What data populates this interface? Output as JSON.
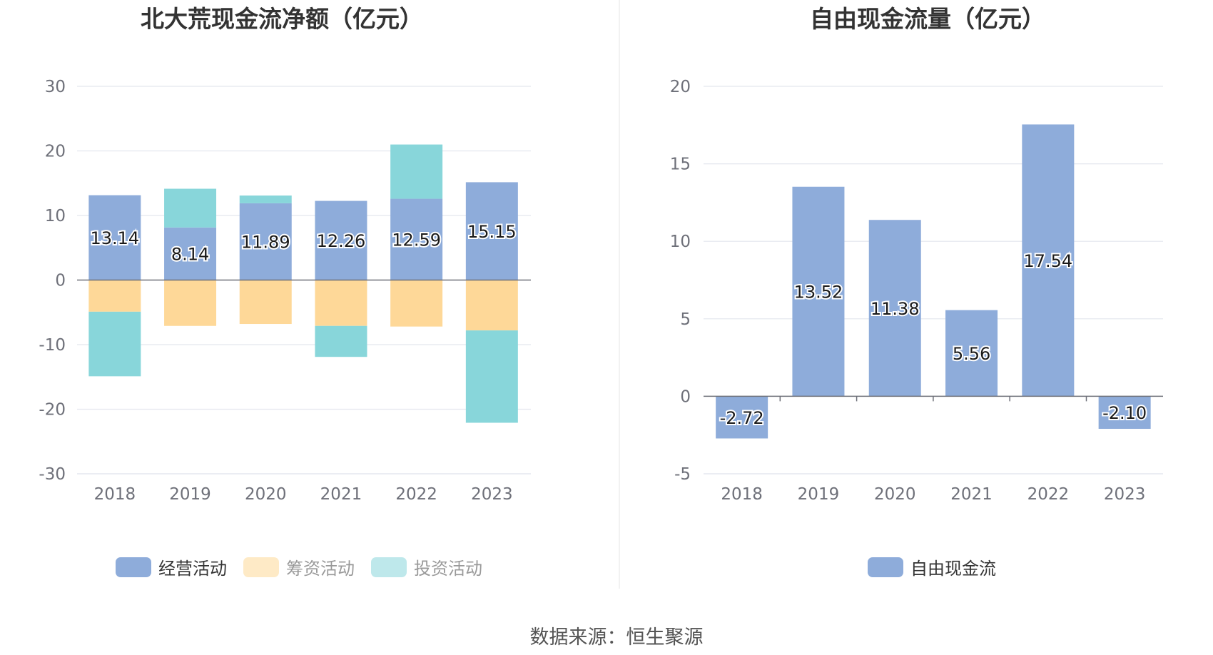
{
  "source_label": "数据来源：恒生聚源",
  "chart_data": [
    {
      "type": "bar",
      "stacked": true,
      "title": "北大荒现金流净额（亿元）",
      "categories": [
        "2018",
        "2019",
        "2020",
        "2021",
        "2022",
        "2023"
      ],
      "ylim": [
        -30,
        30
      ],
      "yticks": [
        30,
        20,
        10,
        0,
        -10,
        -20,
        -30
      ],
      "grid": true,
      "legend_position": "bottom",
      "series": [
        {
          "name": "经营活动",
          "color": "#8eacda",
          "labeled": true,
          "values": [
            13.14,
            8.14,
            11.89,
            12.26,
            12.59,
            15.15
          ],
          "labels": [
            "13.14",
            "8.14",
            "11.89",
            "12.26",
            "12.59",
            "15.15"
          ]
        },
        {
          "name": "筹资活动",
          "color": "#fed898",
          "values": [
            -4.9,
            -7.1,
            -6.8,
            -7.1,
            -7.2,
            -7.8
          ]
        },
        {
          "name": "投资活动",
          "color": "#88d6da",
          "values": [
            -10.0,
            6.0,
            1.2,
            -4.8,
            8.4,
            -14.3
          ]
        }
      ]
    },
    {
      "type": "bar",
      "title": "自由现金流量（亿元）",
      "categories": [
        "2018",
        "2019",
        "2020",
        "2021",
        "2022",
        "2023"
      ],
      "ylim": [
        -5,
        20
      ],
      "yticks": [
        20,
        15,
        10,
        5,
        0,
        -5
      ],
      "grid": true,
      "legend_position": "bottom",
      "series": [
        {
          "name": "自由现金流",
          "color": "#8eacda",
          "labeled": true,
          "values": [
            -2.72,
            13.52,
            11.38,
            5.56,
            17.54,
            -2.1
          ],
          "labels": [
            "-2.72",
            "13.52",
            "11.38",
            "5.56",
            "17.54",
            "-2.10"
          ]
        }
      ]
    }
  ]
}
